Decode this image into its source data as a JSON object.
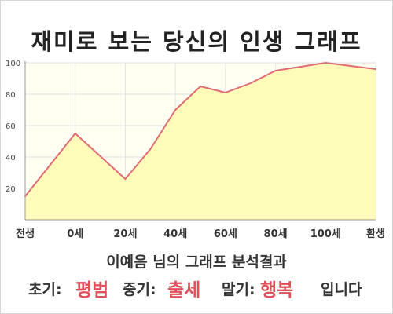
{
  "title": "재미로 보는 당신의 인생 그래프",
  "chart_data": {
    "type": "area",
    "x_labels": [
      "전생",
      "0세",
      "20세",
      "40세",
      "60세",
      "80세",
      "100세",
      "환생"
    ],
    "y_ticks": [
      20,
      40,
      60,
      80,
      100
    ],
    "ylim": [
      0,
      100
    ],
    "grid": true,
    "points": [
      {
        "x": "전생",
        "y": 15
      },
      {
        "x": "0세",
        "y": 55
      },
      {
        "x": "20세",
        "y": 26
      },
      {
        "x": "30세",
        "y": 45
      },
      {
        "x": "40세",
        "y": 70
      },
      {
        "x": "50세",
        "y": 85
      },
      {
        "x": "60세",
        "y": 81
      },
      {
        "x": "70세",
        "y": 87
      },
      {
        "x": "80세",
        "y": 95
      },
      {
        "x": "100세",
        "y": 100
      },
      {
        "x": "환생",
        "y": 96
      }
    ],
    "line_color": "#e06c75",
    "fill_color": "#fefcb8"
  },
  "summary": "이예음 님의 그래프 분석결과",
  "results": {
    "early_label": "초기:",
    "early_value": "평범",
    "middle_label": "중기:",
    "middle_value": "출세",
    "late_label": "말기:",
    "late_value": "행복",
    "ending": "입니다"
  }
}
